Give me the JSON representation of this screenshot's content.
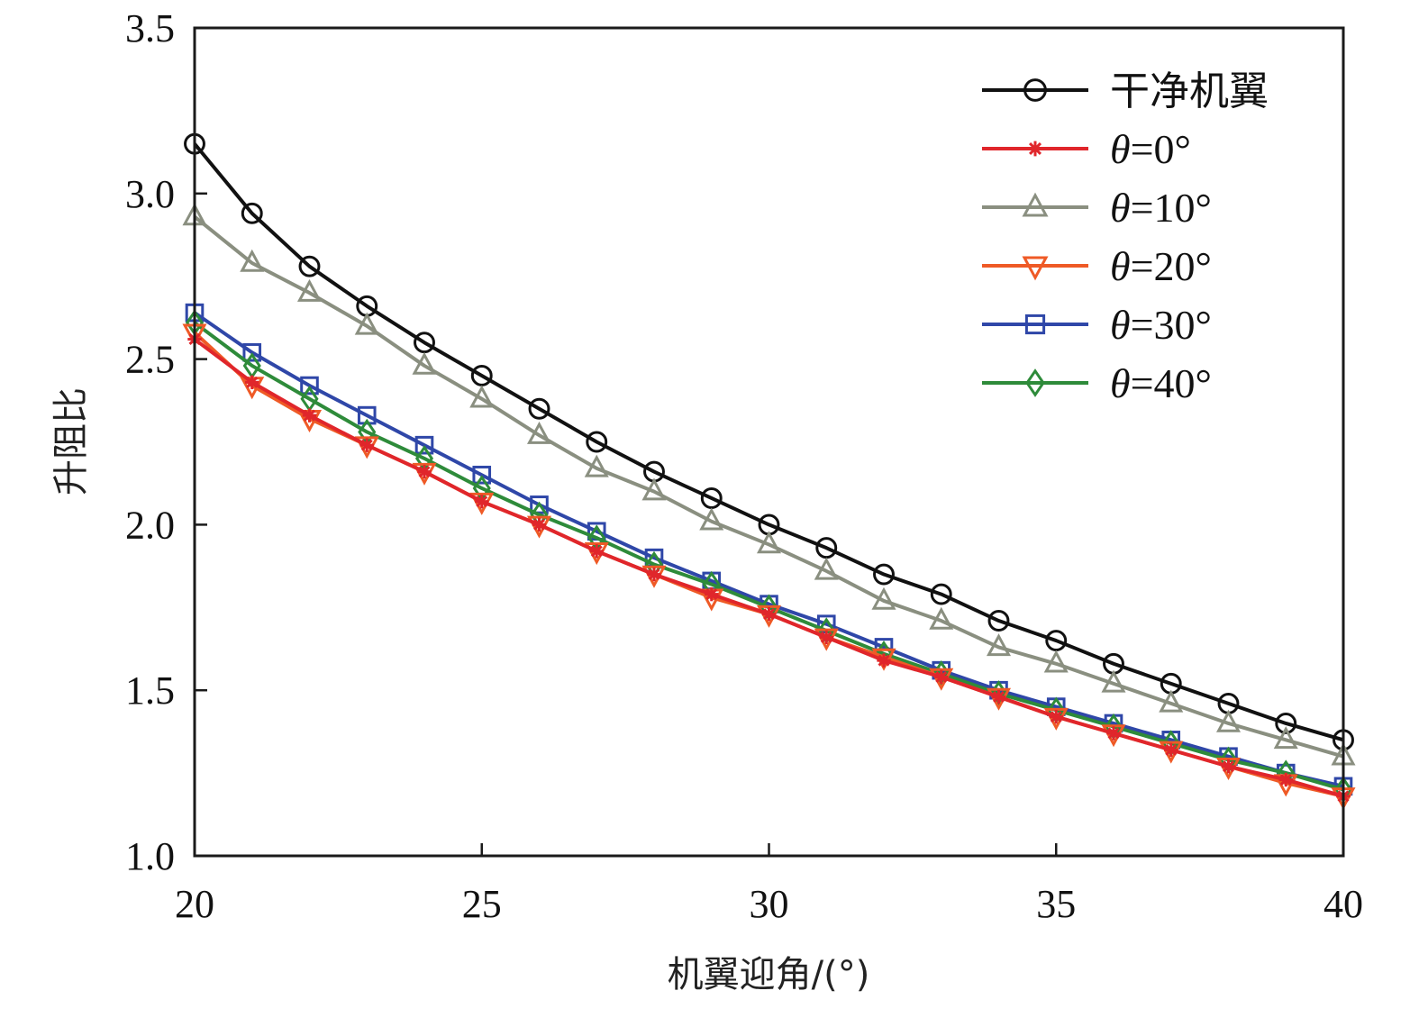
{
  "chart_data": {
    "type": "line",
    "title": "",
    "xlabel": "机翼迎角/(°)",
    "ylabel": "升阻比",
    "xlim": [
      20,
      40
    ],
    "ylim": [
      1.0,
      3.5
    ],
    "xticks": [
      "20",
      "25",
      "30",
      "35",
      "40"
    ],
    "yticks": [
      "1.0",
      "1.5",
      "2.0",
      "2.5",
      "3.0",
      "3.5"
    ],
    "xtick_values": [
      20,
      25,
      30,
      35,
      40
    ],
    "ytick_values": [
      1.0,
      1.5,
      2.0,
      2.5,
      3.0,
      3.5
    ],
    "grid": false,
    "legend_position": "top-right",
    "x": [
      20,
      21,
      22,
      23,
      24,
      25,
      26,
      27,
      28,
      29,
      30,
      31,
      32,
      33,
      34,
      35,
      36,
      37,
      38,
      39,
      40
    ],
    "series": [
      {
        "name": "干净机翼",
        "color": "#111111",
        "marker": "circle",
        "values": [
          3.15,
          2.94,
          2.78,
          2.66,
          2.55,
          2.45,
          2.35,
          2.25,
          2.16,
          2.08,
          2.0,
          1.93,
          1.85,
          1.79,
          1.71,
          1.65,
          1.58,
          1.52,
          1.46,
          1.4,
          1.35
        ]
      },
      {
        "name": "θ=0°",
        "color": "#e0262b",
        "marker": "asterisk",
        "values": [
          2.56,
          2.43,
          2.33,
          2.24,
          2.16,
          2.07,
          2.0,
          1.92,
          1.85,
          1.79,
          1.73,
          1.66,
          1.59,
          1.54,
          1.48,
          1.42,
          1.37,
          1.32,
          1.27,
          1.23,
          1.18
        ]
      },
      {
        "name": "θ=10°",
        "color": "#8a8f80",
        "marker": "triangle-up",
        "values": [
          2.93,
          2.79,
          2.7,
          2.6,
          2.48,
          2.38,
          2.27,
          2.17,
          2.1,
          2.01,
          1.94,
          1.86,
          1.77,
          1.71,
          1.63,
          1.58,
          1.52,
          1.46,
          1.4,
          1.35,
          1.3
        ]
      },
      {
        "name": "θ=20°",
        "color": "#ef5a26",
        "marker": "triangle-down",
        "values": [
          2.58,
          2.42,
          2.32,
          2.24,
          2.16,
          2.07,
          2.0,
          1.92,
          1.85,
          1.78,
          1.73,
          1.66,
          1.6,
          1.54,
          1.48,
          1.42,
          1.37,
          1.32,
          1.27,
          1.22,
          1.18
        ]
      },
      {
        "name": "θ=30°",
        "color": "#2f47a8",
        "marker": "square",
        "values": [
          2.64,
          2.52,
          2.42,
          2.33,
          2.24,
          2.15,
          2.06,
          1.98,
          1.9,
          1.83,
          1.76,
          1.7,
          1.63,
          1.56,
          1.5,
          1.45,
          1.4,
          1.35,
          1.3,
          1.25,
          1.21
        ]
      },
      {
        "name": "θ=40°",
        "color": "#2e8b3a",
        "marker": "diamond",
        "values": [
          2.61,
          2.48,
          2.38,
          2.28,
          2.2,
          2.11,
          2.03,
          1.96,
          1.88,
          1.82,
          1.75,
          1.68,
          1.61,
          1.55,
          1.49,
          1.44,
          1.39,
          1.34,
          1.29,
          1.25,
          1.2
        ]
      }
    ]
  }
}
